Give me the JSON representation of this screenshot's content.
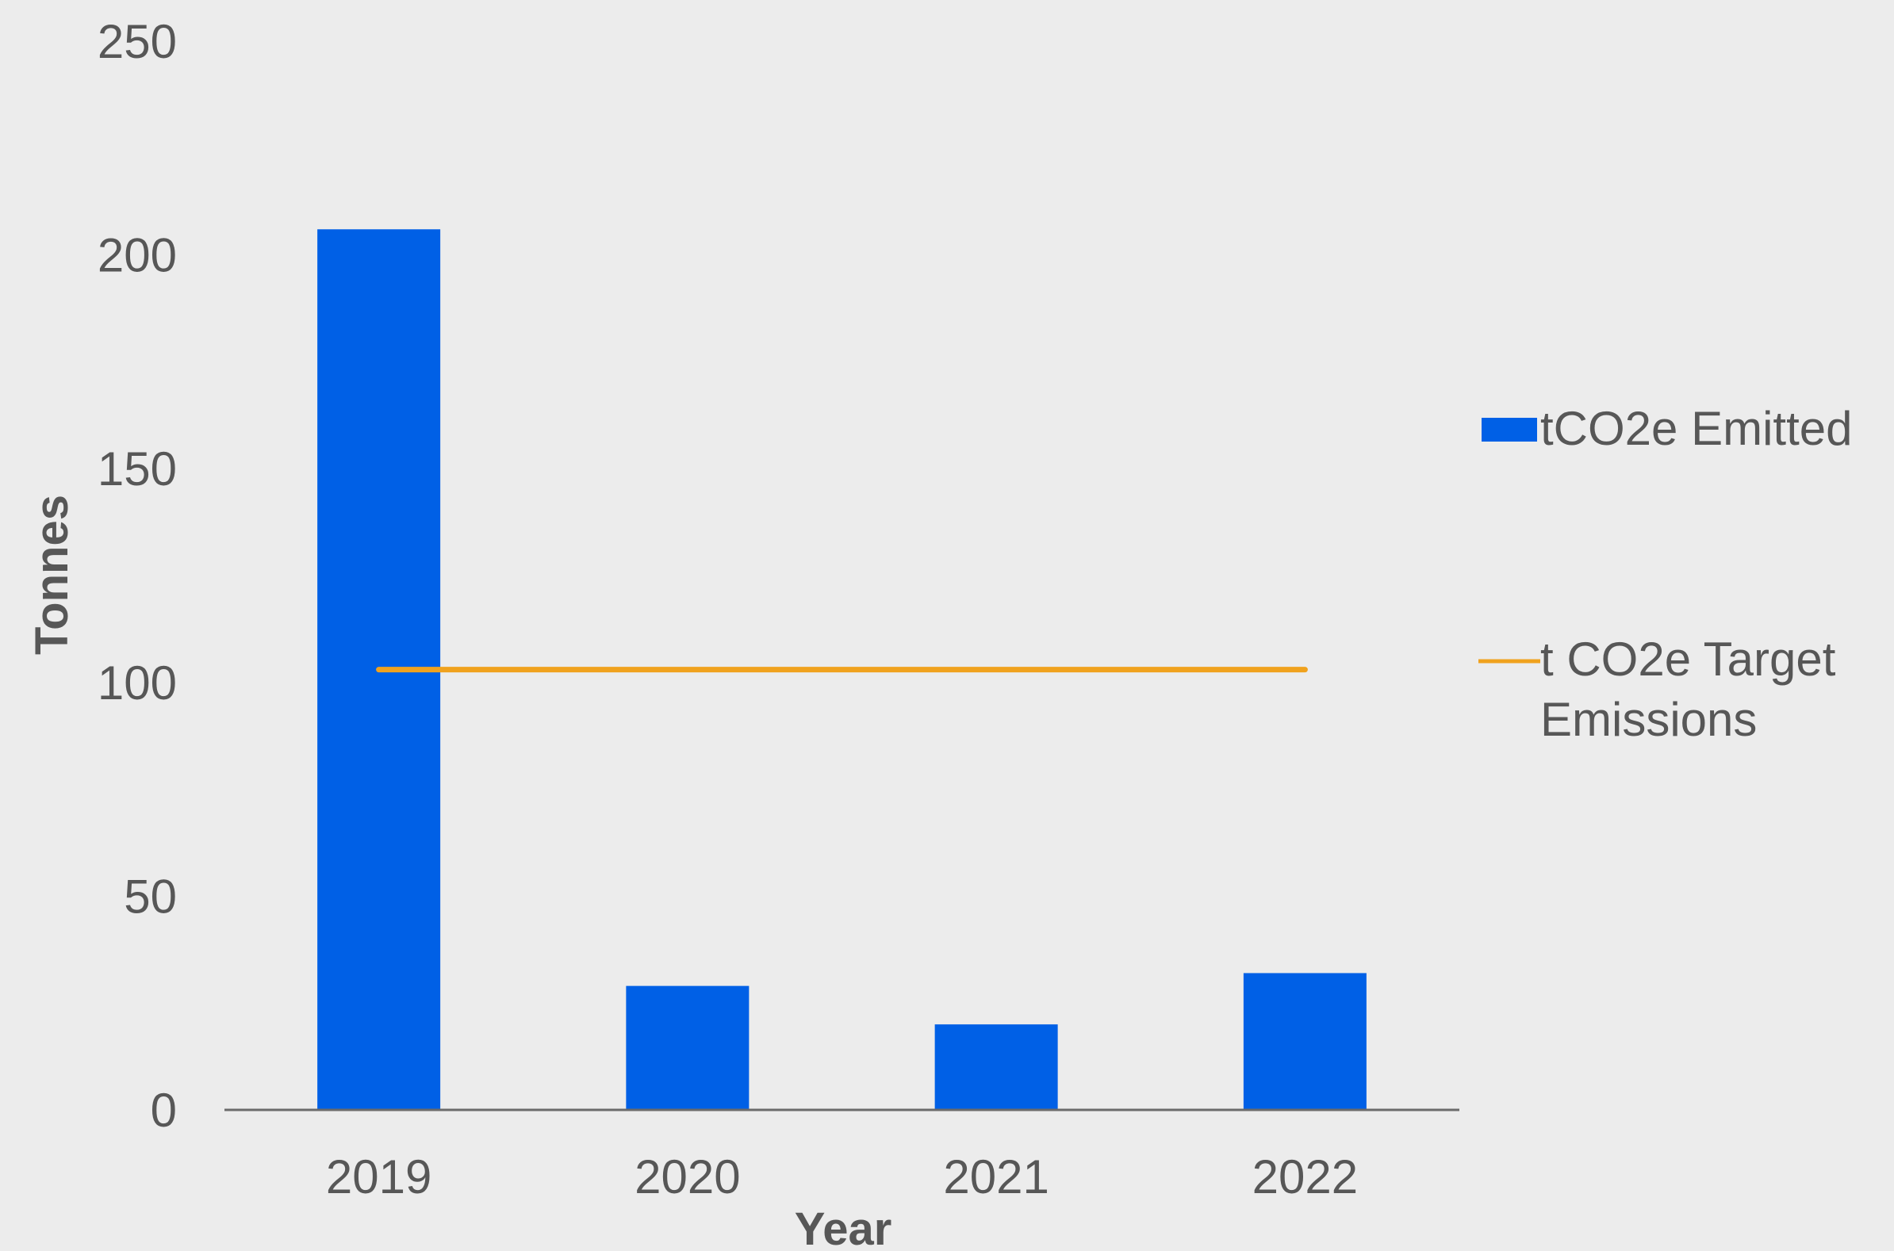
{
  "chart_data": {
    "type": "bar",
    "categories": [
      "2019",
      "2020",
      "2021",
      "2022"
    ],
    "series": [
      {
        "name": "tCO2e Emitted",
        "kind": "bar",
        "color": "#0060e6",
        "values": [
          206,
          29,
          20,
          32
        ]
      },
      {
        "name": "t CO2e Target Emissions",
        "name_lines": [
          "t CO2e Target",
          "Emissions"
        ],
        "kind": "line",
        "color": "#f0a21e",
        "values": [
          103,
          103,
          103,
          103
        ]
      }
    ],
    "title": "",
    "xlabel": "Year",
    "ylabel": "Tonnes",
    "ylim": [
      0,
      250
    ],
    "yticks": [
      0,
      50,
      100,
      150,
      200,
      250
    ],
    "grid": false,
    "legend_position": "right"
  }
}
